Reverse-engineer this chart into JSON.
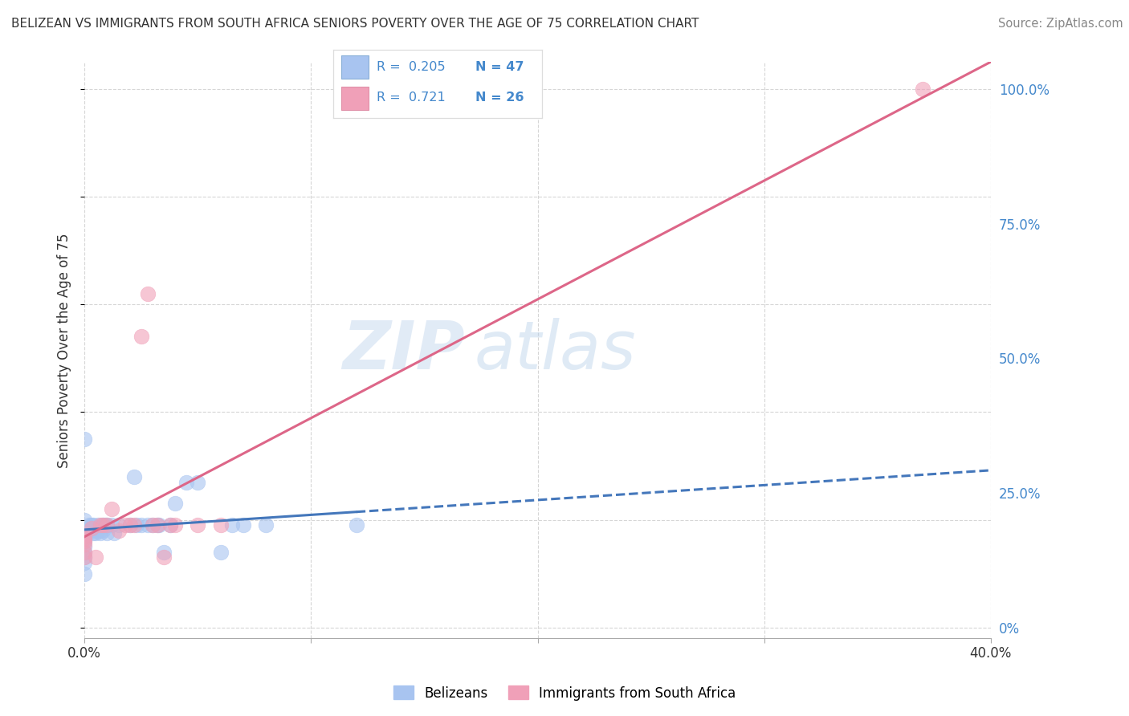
{
  "title": "BELIZEAN VS IMMIGRANTS FROM SOUTH AFRICA SENIORS POVERTY OVER THE AGE OF 75 CORRELATION CHART",
  "source": "Source: ZipAtlas.com",
  "ylabel": "Seniors Poverty Over the Age of 75",
  "xlim": [
    0.0,
    0.4
  ],
  "ylim": [
    -0.02,
    1.05
  ],
  "legend_r1": "0.205",
  "legend_n1": "47",
  "legend_r2": "0.721",
  "legend_n2": "26",
  "color_belizean": "#a8c4f0",
  "color_sa": "#f0a0b8",
  "color_line_belizean": "#4477bb",
  "color_line_sa": "#dd6688",
  "watermark_zip": "ZIP",
  "watermark_atlas": "atlas",
  "grid_color": "#cccccc",
  "bg_color": "#ffffff",
  "belizean_x": [
    0.0,
    0.0,
    0.0,
    0.0,
    0.0,
    0.0,
    0.0,
    0.0,
    0.0,
    0.0,
    0.002,
    0.003,
    0.003,
    0.004,
    0.004,
    0.005,
    0.005,
    0.006,
    0.006,
    0.007,
    0.007,
    0.008,
    0.008,
    0.009,
    0.01,
    0.01,
    0.012,
    0.013,
    0.015,
    0.02,
    0.022,
    0.023,
    0.025,
    0.028,
    0.03,
    0.032,
    0.033,
    0.035,
    0.038,
    0.04,
    0.045,
    0.05,
    0.06,
    0.065,
    0.07,
    0.08,
    0.12
  ],
  "belizean_y": [
    0.35,
    0.2,
    0.18,
    0.17,
    0.16,
    0.15,
    0.14,
    0.13,
    0.12,
    0.1,
    0.19,
    0.19,
    0.18,
    0.19,
    0.175,
    0.18,
    0.175,
    0.18,
    0.19,
    0.18,
    0.175,
    0.18,
    0.19,
    0.19,
    0.19,
    0.175,
    0.19,
    0.175,
    0.19,
    0.19,
    0.28,
    0.19,
    0.19,
    0.19,
    0.19,
    0.19,
    0.19,
    0.14,
    0.19,
    0.23,
    0.27,
    0.27,
    0.14,
    0.19,
    0.19,
    0.19,
    0.19
  ],
  "sa_x": [
    0.0,
    0.0,
    0.0,
    0.0,
    0.0,
    0.0,
    0.003,
    0.005,
    0.007,
    0.008,
    0.01,
    0.012,
    0.015,
    0.018,
    0.02,
    0.022,
    0.025,
    0.028,
    0.03,
    0.032,
    0.035,
    0.038,
    0.04,
    0.05,
    0.06,
    0.37
  ],
  "sa_y": [
    0.13,
    0.14,
    0.155,
    0.16,
    0.165,
    0.17,
    0.185,
    0.13,
    0.19,
    0.19,
    0.19,
    0.22,
    0.18,
    0.19,
    0.19,
    0.19,
    0.54,
    0.62,
    0.19,
    0.19,
    0.13,
    0.19,
    0.19,
    0.19,
    0.19,
    1.0
  ]
}
